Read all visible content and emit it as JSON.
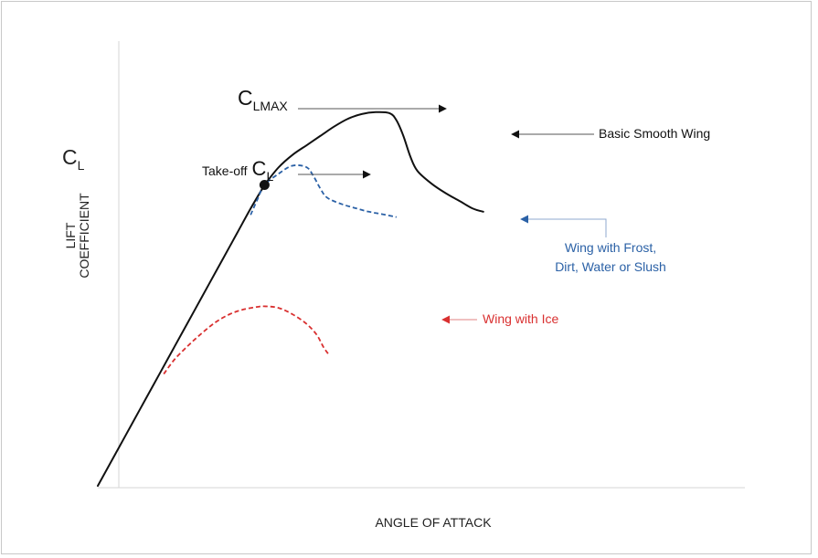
{
  "chart_data": {
    "type": "line",
    "title": "",
    "xlabel": "ANGLE OF ATTACK",
    "ylabel": [
      "LIFT",
      "COEFFICIENT"
    ],
    "ylabel_symbol": {
      "main": "C",
      "sub": "L"
    },
    "ticks": "none",
    "grid": false,
    "annotations": {
      "clmax": {
        "main": "C",
        "sub": "LMAX"
      },
      "takeoff": {
        "prefix": "Take-off",
        "main": "C",
        "sub": "L"
      },
      "smooth": "Basic Smooth Wing",
      "frost": [
        "Wing with Frost,",
        "Dirt, Water or Slush"
      ],
      "ice": "Wing with Ice"
    },
    "series": [
      {
        "label_ref": "smooth",
        "color": "#111111",
        "style": "solid",
        "points": [
          [
            0,
            0
          ],
          [
            2,
            8
          ],
          [
            4,
            16
          ],
          [
            6,
            24
          ],
          [
            8,
            32
          ],
          [
            10,
            40
          ],
          [
            12,
            48
          ],
          [
            14,
            56
          ],
          [
            16,
            64
          ],
          [
            18,
            72
          ],
          [
            20,
            80
          ],
          [
            22,
            88
          ],
          [
            23.6,
            94
          ],
          [
            24,
            95.5
          ],
          [
            26,
            101
          ],
          [
            28,
            105
          ],
          [
            30,
            108
          ],
          [
            32,
            111
          ],
          [
            34,
            114
          ],
          [
            36,
            116.5
          ],
          [
            38,
            118
          ],
          [
            40,
            118.6
          ],
          [
            42,
            118.3
          ],
          [
            43,
            116
          ],
          [
            44,
            111
          ],
          [
            45,
            104.5
          ],
          [
            46,
            100
          ],
          [
            48,
            96
          ],
          [
            50,
            93
          ],
          [
            52,
            90.5
          ],
          [
            54,
            88
          ],
          [
            55.5,
            87
          ]
        ]
      },
      {
        "label_ref": "frost",
        "color": "#2b61a6",
        "style": "dashed",
        "points": [
          [
            22,
            86
          ],
          [
            23,
            91
          ],
          [
            24,
            95.5
          ],
          [
            26,
            99
          ],
          [
            28,
            101.6
          ],
          [
            30,
            101.2
          ],
          [
            31,
            98.5
          ],
          [
            32,
            94.5
          ],
          [
            33,
            91.5
          ],
          [
            35,
            89.5
          ],
          [
            37,
            88.2
          ],
          [
            39,
            87
          ],
          [
            41,
            86.2
          ],
          [
            43,
            85.3
          ]
        ]
      },
      {
        "label_ref": "ice",
        "color": "#d93030",
        "style": "dashed",
        "points": [
          [
            9.5,
            35.5
          ],
          [
            11,
            40
          ],
          [
            13,
            44.5
          ],
          [
            15,
            48.5
          ],
          [
            17,
            52
          ],
          [
            19,
            54.5
          ],
          [
            21,
            56
          ],
          [
            23,
            56.8
          ],
          [
            24,
            57
          ],
          [
            26,
            56.5
          ],
          [
            28,
            54.5
          ],
          [
            30,
            51.5
          ],
          [
            31.5,
            48
          ],
          [
            32.5,
            44
          ],
          [
            33.3,
            41.5
          ]
        ]
      }
    ],
    "markers": [
      {
        "label_ref": "takeoff",
        "x": 24,
        "y": 95.5
      }
    ]
  }
}
